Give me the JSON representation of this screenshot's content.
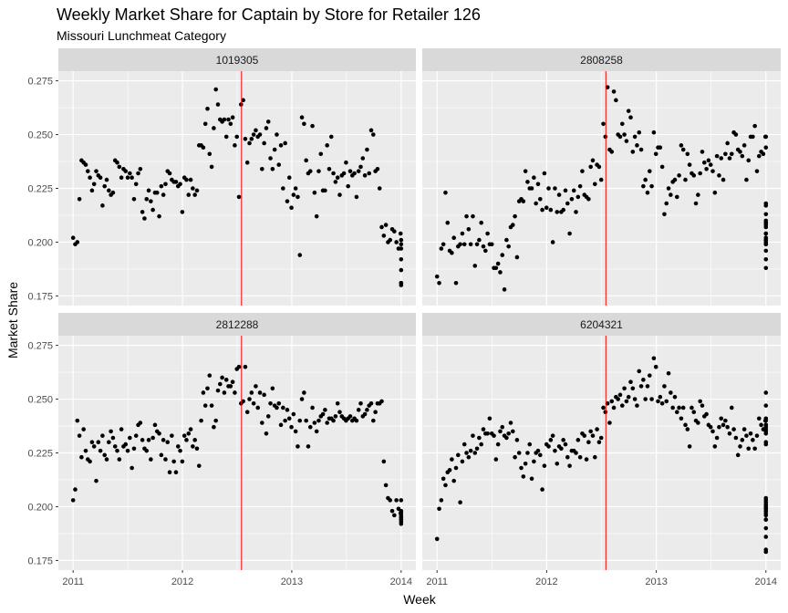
{
  "title": "Weekly Market Share for Captain by Store for Retailer 126",
  "subtitle": "Missouri Lunchmeat Category",
  "chart_data": {
    "type": "scatter",
    "title": "Weekly Market Share for Captain by Store for Retailer 126",
    "subtitle": "Missouri Lunchmeat Category",
    "xlabel": "Week",
    "ylabel": "Market Share",
    "xlim": [
      2011,
      2014
    ],
    "ylim": [
      0.175,
      0.275
    ],
    "x_ticks": [
      "2011",
      "2012",
      "2013",
      "2014"
    ],
    "y_ticks": [
      "0.175",
      "0.200",
      "0.225",
      "0.250",
      "0.275"
    ],
    "grid": true,
    "reference_line": {
      "x": 2012.54,
      "color": "#ff0000"
    },
    "colors": {
      "point": "#000000",
      "panel": "#ebebeb",
      "strip": "#d9d9d9",
      "gridline": "#ffffff"
    },
    "facets": [
      {
        "label": "1019305",
        "x_start": 2011.0,
        "x_step": 0.0192,
        "values": [
          0.202,
          0.199,
          0.2,
          0.22,
          0.238,
          0.237,
          0.236,
          0.233,
          0.23,
          0.224,
          0.227,
          0.233,
          0.231,
          0.23,
          0.217,
          0.226,
          0.229,
          0.224,
          0.222,
          0.223,
          0.238,
          0.237,
          0.235,
          0.23,
          0.234,
          0.233,
          0.23,
          0.232,
          0.23,
          0.22,
          0.227,
          0.232,
          0.234,
          0.214,
          0.211,
          0.22,
          0.224,
          0.219,
          0.215,
          0.223,
          0.223,
          0.212,
          0.226,
          0.222,
          0.227,
          0.233,
          0.232,
          0.229,
          0.228,
          0.228,
          0.226,
          0.227,
          0.214,
          0.23,
          0.229,
          0.222,
          0.229,
          0.225,
          0.222,
          0.224,
          0.245,
          0.245,
          0.244,
          0.255,
          0.262,
          0.241,
          0.235,
          0.253,
          0.271,
          0.264,
          0.257,
          0.256,
          0.257,
          0.249,
          0.257,
          0.255,
          0.258,
          0.245,
          0.249,
          0.221,
          0.264,
          0.266,
          0.248,
          0.237,
          0.246,
          0.248,
          0.25,
          0.252,
          0.249,
          0.25,
          0.234,
          0.246,
          0.253,
          0.256,
          0.239,
          0.234,
          0.243,
          0.25,
          0.236,
          0.245,
          0.225,
          0.246,
          0.219,
          0.23,
          0.216,
          0.222,
          0.225,
          0.221,
          0.194,
          0.258,
          0.255,
          0.238,
          0.232,
          0.233,
          0.254,
          0.223,
          0.212,
          0.233,
          0.241,
          0.224,
          0.224,
          0.245,
          0.234,
          0.249,
          0.232,
          0.228,
          0.23,
          0.222,
          0.231,
          0.232,
          0.237,
          0.226,
          0.233,
          0.231,
          0.232,
          0.221,
          0.233,
          0.235,
          0.239,
          0.231,
          0.243,
          0.232,
          0.252,
          0.25,
          0.233,
          0.234,
          0.225,
          0.207,
          0.203,
          0.208,
          0.2,
          0.201,
          0.206,
          0.205,
          0.2,
          0.197,
          0.204,
          0.199,
          0.201,
          0.192,
          0.18,
          0.187,
          0.181,
          0.197,
          0.181
        ],
        "x_min": 2011.0,
        "x_max": 2014.0
      },
      {
        "label": "2808258",
        "x_start": 2011.0,
        "x_step": 0.0192,
        "values": [
          0.184,
          0.181,
          0.197,
          0.199,
          0.223,
          0.209,
          0.196,
          0.195,
          0.202,
          0.181,
          0.198,
          0.199,
          0.204,
          0.199,
          0.212,
          0.206,
          0.199,
          0.212,
          0.189,
          0.199,
          0.201,
          0.209,
          0.198,
          0.196,
          0.204,
          0.199,
          0.199,
          0.188,
          0.188,
          0.19,
          0.186,
          0.194,
          0.178,
          0.201,
          0.198,
          0.207,
          0.208,
          0.212,
          0.193,
          0.219,
          0.22,
          0.219,
          0.233,
          0.228,
          0.225,
          0.225,
          0.23,
          0.218,
          0.227,
          0.22,
          0.215,
          0.232,
          0.216,
          0.225,
          0.215,
          0.2,
          0.225,
          0.214,
          0.222,
          0.214,
          0.215,
          0.224,
          0.218,
          0.204,
          0.22,
          0.224,
          0.214,
          0.221,
          0.226,
          0.233,
          0.222,
          0.221,
          0.22,
          0.235,
          0.238,
          0.227,
          0.236,
          0.235,
          0.229,
          0.255,
          0.249,
          0.272,
          0.243,
          0.242,
          0.27,
          0.266,
          0.25,
          0.249,
          0.255,
          0.25,
          0.247,
          0.261,
          0.258,
          0.242,
          0.249,
          0.245,
          0.251,
          0.243,
          0.226,
          0.229,
          0.223,
          0.233,
          0.226,
          0.251,
          0.241,
          0.244,
          0.244,
          0.235,
          0.213,
          0.218,
          0.225,
          0.222,
          0.228,
          0.229,
          0.221,
          0.231,
          0.245,
          0.243,
          0.229,
          0.241,
          0.236,
          0.232,
          0.231,
          0.218,
          0.222,
          0.232,
          0.242,
          0.237,
          0.234,
          0.238,
          0.236,
          0.233,
          0.223,
          0.24,
          0.231,
          0.239,
          0.229,
          0.241,
          0.246,
          0.239,
          0.241,
          0.251,
          0.25,
          0.243,
          0.242,
          0.24,
          0.245,
          0.229,
          0.238,
          0.249,
          0.249,
          0.254,
          0.233,
          0.24,
          0.242,
          0.241,
          0.249,
          0.249,
          0.244,
          0.217,
          0.218,
          0.208,
          0.209,
          0.204,
          0.202,
          0.199,
          0.204,
          0.213,
          0.201,
          0.196,
          0.207,
          0.21,
          0.201,
          0.188,
          0.209,
          0.2,
          0.199,
          0.192
        ],
        "x_min": 2011.0,
        "x_max": 2014.0
      },
      {
        "label": "2812288",
        "x_start": 2011.0,
        "x_step": 0.0192,
        "values": [
          0.203,
          0.208,
          0.24,
          0.233,
          0.223,
          0.236,
          0.226,
          0.222,
          0.221,
          0.23,
          0.228,
          0.212,
          0.23,
          0.226,
          0.233,
          0.224,
          0.222,
          0.23,
          0.235,
          0.232,
          0.228,
          0.226,
          0.222,
          0.236,
          0.228,
          0.229,
          0.226,
          0.232,
          0.218,
          0.227,
          0.233,
          0.238,
          0.239,
          0.231,
          0.227,
          0.226,
          0.231,
          0.222,
          0.232,
          0.238,
          0.235,
          0.234,
          0.224,
          0.231,
          0.222,
          0.23,
          0.216,
          0.233,
          0.221,
          0.216,
          0.228,
          0.226,
          0.221,
          0.233,
          0.231,
          0.234,
          0.236,
          0.228,
          0.231,
          0.227,
          0.219,
          0.24,
          0.253,
          0.247,
          0.255,
          0.261,
          0.247,
          0.237,
          0.24,
          0.254,
          0.257,
          0.26,
          0.253,
          0.259,
          0.256,
          0.256,
          0.258,
          0.253,
          0.264,
          0.265,
          0.248,
          0.249,
          0.265,
          0.244,
          0.25,
          0.253,
          0.248,
          0.256,
          0.246,
          0.253,
          0.239,
          0.252,
          0.234,
          0.242,
          0.248,
          0.255,
          0.247,
          0.246,
          0.248,
          0.238,
          0.246,
          0.24,
          0.245,
          0.241,
          0.237,
          0.243,
          0.235,
          0.228,
          0.24,
          0.25,
          0.253,
          0.24,
          0.228,
          0.237,
          0.246,
          0.239,
          0.235,
          0.24,
          0.242,
          0.243,
          0.245,
          0.239,
          0.241,
          0.241,
          0.24,
          0.242,
          0.248,
          0.244,
          0.242,
          0.241,
          0.24,
          0.241,
          0.242,
          0.24,
          0.241,
          0.24,
          0.245,
          0.248,
          0.242,
          0.243,
          0.245,
          0.247,
          0.248,
          0.24,
          0.244,
          0.248,
          0.248,
          0.249,
          0.221,
          0.21,
          0.204,
          0.203,
          0.198,
          0.196,
          0.203,
          0.199,
          0.197,
          0.203,
          0.197,
          0.192,
          0.194,
          0.198,
          0.193,
          0.195,
          0.196,
          0.195,
          0.194
        ],
        "x_min": 2011.0,
        "x_max": 2014.0
      },
      {
        "label": "6204321",
        "x_start": 2011.0,
        "x_step": 0.0192,
        "values": [
          0.185,
          0.199,
          0.203,
          0.213,
          0.21,
          0.216,
          0.217,
          0.222,
          0.212,
          0.218,
          0.224,
          0.202,
          0.221,
          0.229,
          0.225,
          0.223,
          0.226,
          0.233,
          0.225,
          0.227,
          0.232,
          0.229,
          0.236,
          0.234,
          0.234,
          0.241,
          0.234,
          0.233,
          0.222,
          0.229,
          0.235,
          0.237,
          0.233,
          0.232,
          0.234,
          0.239,
          0.235,
          0.223,
          0.231,
          0.225,
          0.218,
          0.214,
          0.22,
          0.225,
          0.229,
          0.213,
          0.221,
          0.225,
          0.226,
          0.224,
          0.208,
          0.219,
          0.229,
          0.228,
          0.231,
          0.233,
          0.226,
          0.22,
          0.228,
          0.227,
          0.231,
          0.229,
          0.223,
          0.219,
          0.226,
          0.226,
          0.225,
          0.231,
          0.223,
          0.234,
          0.233,
          0.222,
          0.23,
          0.235,
          0.233,
          0.223,
          0.236,
          0.23,
          0.232,
          0.246,
          0.244,
          0.248,
          0.239,
          0.249,
          0.246,
          0.251,
          0.25,
          0.252,
          0.247,
          0.255,
          0.249,
          0.251,
          0.258,
          0.255,
          0.25,
          0.247,
          0.263,
          0.256,
          0.259,
          0.25,
          0.256,
          0.261,
          0.25,
          0.269,
          0.265,
          0.249,
          0.251,
          0.248,
          0.256,
          0.249,
          0.262,
          0.253,
          0.246,
          0.251,
          0.244,
          0.246,
          0.241,
          0.246,
          0.238,
          0.236,
          0.228,
          0.246,
          0.244,
          0.24,
          0.239,
          0.249,
          0.247,
          0.242,
          0.243,
          0.238,
          0.237,
          0.235,
          0.228,
          0.232,
          0.237,
          0.241,
          0.238,
          0.24,
          0.237,
          0.234,
          0.246,
          0.236,
          0.232,
          0.224,
          0.228,
          0.231,
          0.236,
          0.233,
          0.227,
          0.234,
          0.231,
          0.227,
          0.233,
          0.241,
          0.238,
          0.236,
          0.24,
          0.238,
          0.236,
          0.229,
          0.24,
          0.237,
          0.238,
          0.235,
          0.247,
          0.241,
          0.253,
          0.238,
          0.234,
          0.23,
          0.201,
          0.199,
          0.198,
          0.2,
          0.199,
          0.203,
          0.197,
          0.196,
          0.202,
          0.199,
          0.204,
          0.194,
          0.2,
          0.194,
          0.19,
          0.186,
          0.18,
          0.179
        ],
        "x_min": 2011.0,
        "x_max": 2014.0
      }
    ]
  }
}
